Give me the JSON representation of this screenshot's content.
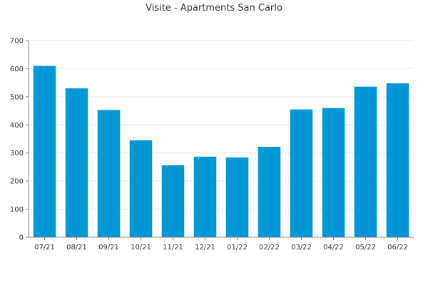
{
  "chart_data": {
    "type": "bar",
    "title": "Visite - Apartments San Carlo",
    "xlabel": "",
    "ylabel": "",
    "categories": [
      "07/21",
      "08/21",
      "09/21",
      "10/21",
      "11/21",
      "12/21",
      "01/22",
      "02/22",
      "03/22",
      "04/22",
      "05/22",
      "06/22"
    ],
    "series": [
      {
        "values": [
          610,
          530,
          453,
          345,
          256,
          287,
          284,
          322,
          455,
          460,
          536,
          548
        ]
      }
    ],
    "ylim": [
      0,
      700
    ],
    "yticks": [
      0,
      100,
      200,
      300,
      400,
      500,
      600,
      700
    ],
    "grid": true,
    "legend": "none",
    "bar_color": "#0097d6"
  }
}
